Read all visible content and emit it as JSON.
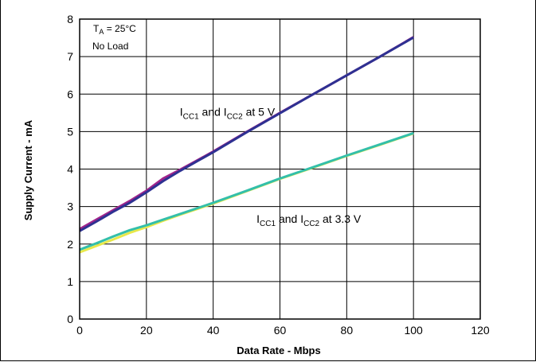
{
  "chart_data": {
    "type": "line",
    "title": "",
    "xlabel": "Data Rate - Mbps",
    "ylabel": "Supply Current - mA",
    "xlim": [
      0,
      120
    ],
    "ylim": [
      0,
      8
    ],
    "xticks": [
      0,
      20,
      40,
      60,
      80,
      100,
      120
    ],
    "yticks": [
      0,
      1,
      2,
      3,
      4,
      5,
      6,
      7,
      8
    ],
    "grid": true,
    "series": [
      {
        "group": "5 V",
        "color": "#a0248c",
        "x": [
          0,
          5,
          10,
          15,
          20,
          25,
          30,
          35,
          40,
          50,
          60,
          70,
          80,
          90,
          100
        ],
        "y": [
          2.4,
          2.65,
          2.9,
          3.15,
          3.42,
          3.75,
          3.98,
          4.22,
          4.47,
          4.99,
          5.5,
          6.0,
          6.5,
          7.0,
          7.52
        ]
      },
      {
        "group": "5 V",
        "color": "#2e3192",
        "x": [
          0,
          5,
          10,
          15,
          20,
          25,
          30,
          35,
          40,
          50,
          60,
          70,
          80,
          90,
          100
        ],
        "y": [
          2.35,
          2.6,
          2.86,
          3.1,
          3.38,
          3.68,
          3.95,
          4.2,
          4.45,
          4.98,
          5.49,
          6.0,
          6.5,
          7.0,
          7.51
        ]
      },
      {
        "group": "3.3 V",
        "color": "#e8e84a",
        "x": [
          0,
          5,
          10,
          15,
          20,
          25,
          30,
          35,
          40,
          50,
          60,
          70,
          80,
          90,
          100
        ],
        "y": [
          1.78,
          1.95,
          2.12,
          2.3,
          2.45,
          2.62,
          2.78,
          2.93,
          3.08,
          3.41,
          3.74,
          4.04,
          4.35,
          4.65,
          4.95
        ]
      },
      {
        "group": "3.3 V",
        "color": "#33bfaa",
        "x": [
          0,
          5,
          10,
          15,
          20,
          25,
          30,
          35,
          40,
          50,
          60,
          70,
          80,
          90,
          100
        ],
        "y": [
          1.85,
          2.02,
          2.2,
          2.37,
          2.5,
          2.65,
          2.8,
          2.95,
          3.1,
          3.42,
          3.75,
          4.05,
          4.36,
          4.66,
          4.96
        ]
      }
    ],
    "annotations": {
      "conditions": {
        "ta_main": "T",
        "ta_sub": "A",
        "ta_rest": " = 25°C",
        "load": "No Load"
      },
      "line_5v": {
        "p1": "I",
        "s1": "CC1",
        "p2": " and I",
        "s2": "CC2",
        "p3": " at 5 V",
        "x": 30,
        "y": 5.42
      },
      "line_33v": {
        "p1": "I",
        "s1": "CC1",
        "p2": " and I",
        "s2": "CC2",
        "p3": " at 3.3 V",
        "x": 53,
        "y": 2.57
      }
    }
  }
}
